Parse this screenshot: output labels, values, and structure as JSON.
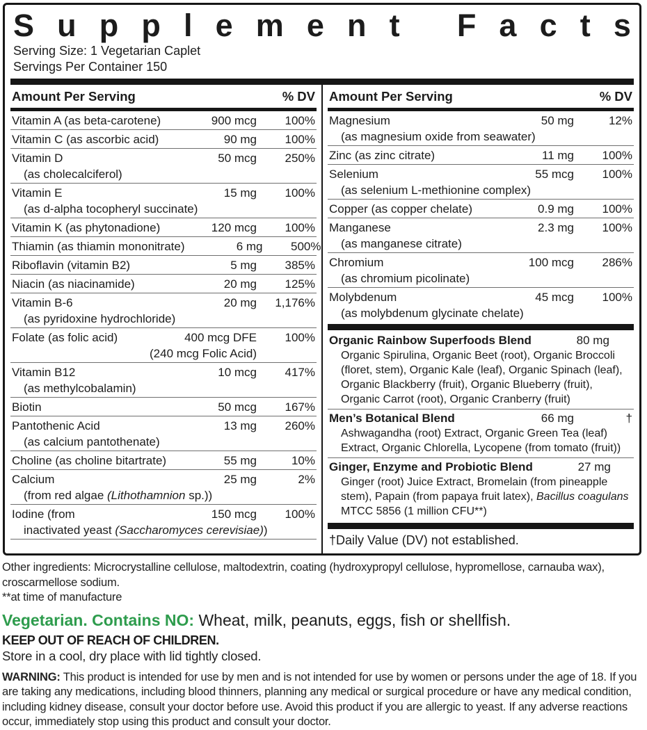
{
  "title": "Supplement Facts",
  "serving_info": {
    "line1": "Serving Size: 1 Vegetarian Caplet",
    "line2": "Servings Per Container 150"
  },
  "table": {
    "column_header": {
      "amount": "Amount Per Serving",
      "dv": "% DV"
    },
    "left_rows": [
      {
        "name": "Vitamin A (as beta-carotene)",
        "amount": "900 mcg",
        "dv": "100%"
      },
      {
        "name": "Vitamin C (as ascorbic acid)",
        "amount": "90 mg",
        "dv": "100%"
      },
      {
        "name": "Vitamin D",
        "sub": "(as cholecalciferol)",
        "amount": "50 mcg",
        "dv": "250%"
      },
      {
        "name": "Vitamin E",
        "sub": "(as d-alpha tocopheryl succinate)",
        "amount": "15 mg",
        "dv": "100%"
      },
      {
        "name": "Vitamin K (as phytonadione)",
        "amount": "120 mcg",
        "dv": "100%"
      },
      {
        "name": "Thiamin (as thiamin mononitrate)",
        "amount": "6 mg",
        "dv": "500%"
      },
      {
        "name": "Riboflavin (vitamin B2)",
        "amount": "5 mg",
        "dv": "385%"
      },
      {
        "name": "Niacin (as niacinamide)",
        "amount": "20 mg",
        "dv": "125%"
      },
      {
        "name": "Vitamin B-6",
        "sub": "(as pyridoxine hydrochloride)",
        "amount": "20 mg",
        "dv": "1,176%"
      },
      {
        "name": "Folate (as folic acid)",
        "amount": "400 mcg DFE",
        "amount2": "(240 mcg Folic Acid)",
        "dv": "100%"
      },
      {
        "name": "Vitamin B12",
        "sub": "(as methylcobalamin)",
        "amount": "10 mcg",
        "dv": "417%"
      },
      {
        "name": "Biotin",
        "amount": "50 mcg",
        "dv": "167%"
      },
      {
        "name": "Pantothenic Acid",
        "sub": "(as calcium pantothenate)",
        "amount": "13 mg",
        "dv": "260%"
      },
      {
        "name": "Choline (as choline bitartrate)",
        "amount": "55 mg",
        "dv": "10%"
      },
      {
        "name": "Calcium",
        "sub_parts": [
          {
            "t": "(from red algae "
          },
          {
            "t": "(Lithothamnion",
            "i": true
          },
          {
            "t": " sp.))"
          }
        ],
        "amount": "25 mg",
        "dv": "2%"
      },
      {
        "name": "Iodine (from",
        "sub_parts": [
          {
            "t": "inactivated yeast "
          },
          {
            "t": "(Saccharomyces cerevisiae)",
            "i": true
          },
          {
            "t": ")"
          }
        ],
        "amount": "150 mcg",
        "dv": "100%"
      }
    ],
    "right_rows": [
      {
        "name": "Magnesium",
        "sub": "(as magnesium oxide from seawater)",
        "amount": "50 mg",
        "dv": "12%"
      },
      {
        "name": "Zinc (as zinc citrate)",
        "amount": "11 mg",
        "dv": "100%"
      },
      {
        "name": "Selenium",
        "sub": "(as selenium L-methionine complex)",
        "amount": "55 mcg",
        "dv": "100%"
      },
      {
        "name": "Copper (as copper chelate)",
        "amount": "0.9 mg",
        "dv": "100%"
      },
      {
        "name": "Manganese",
        "sub": "(as manganese citrate)",
        "amount": "2.3 mg",
        "dv": "100%"
      },
      {
        "name": "Chromium",
        "sub": "(as chromium picolinate)",
        "amount": "100 mcg",
        "dv": "286%"
      },
      {
        "name": "Molybdenum",
        "sub": "(as molybdenum glycinate chelate)",
        "amount": "45 mcg",
        "dv": "100%",
        "last": true
      }
    ],
    "blends": [
      {
        "name": "Organic Rainbow Superfoods Blend",
        "amount": "80 mg",
        "dv": "†",
        "desc_parts": [
          {
            "t": "Organic Spirulina, Organic Beet (root), Organic Broccoli (floret, stem), Organic Kale (leaf), Organic Spinach (leaf), Organic Blackberry (fruit), Organic Blueberry (fruit), Organic Carrot (root), Organic Cranberry (fruit)"
          }
        ]
      },
      {
        "name": "Men’s Botanical Blend",
        "amount": "66 mg",
        "dv": "†",
        "desc_parts": [
          {
            "t": "Ashwagandha (root) Extract, Organic Green Tea (leaf) Extract, Organic Chlorella, Lycopene (from tomato (fruit))"
          }
        ]
      },
      {
        "name": "Ginger, Enzyme and Probiotic Blend",
        "amount": "27 mg",
        "dv": "†",
        "desc_parts": [
          {
            "t": "Ginger (root) Juice Extract, Bromelain (from pineapple stem), Papain (from papaya fruit latex), "
          },
          {
            "t": "Bacillus coagulans",
            "i": true
          },
          {
            "t": " MTCC 5856 (1 million CFU**)"
          }
        ]
      }
    ],
    "footnote": "†Daily Value (DV) not established."
  },
  "bottom": {
    "other_ingredients": "Other ingredients: Microcrystalline cellulose, maltodextrin, coating (hydroxypropyl cellulose, hypromellose, carnauba wax), croscarmellose sodium.",
    "manufacture_note": "**at time of manufacture",
    "vegetarian": {
      "label": "Vegetarian. Contains NO:",
      "text": "Wheat, milk, peanuts, eggs, fish or shellfish."
    },
    "keep_out": "KEEP OUT OF REACH OF CHILDREN.",
    "storage": "Store in a cool, dry place with lid tightly closed.",
    "warning": {
      "label": "WARNING:",
      "text": "This product is intended for use by men and is not intended for use by women or persons under the age of 18. If you are taking any medications, including blood thinners, planning any medical or surgical procedure or have any medical condition, including kidney disease, consult your doctor before use. Avoid this product if you are allergic to yeast. If any adverse reactions occur, immediately stop using this product and consult your doctor."
    }
  },
  "colors": {
    "accent_green": "#2E9C4D",
    "text": "#1C1C1C",
    "rule": "#6E6E6E",
    "bar": "#161616"
  }
}
